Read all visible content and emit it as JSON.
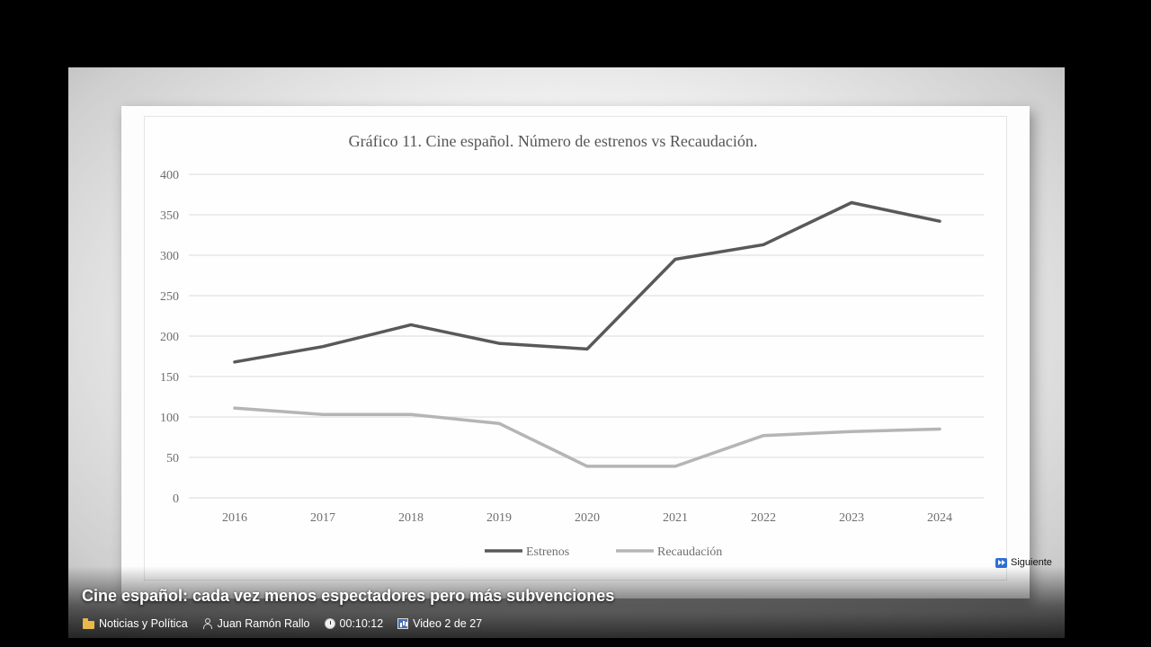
{
  "video": {
    "title": "Cine español: cada vez menos espectadores pero más subvenciones",
    "category": "Noticias y Política",
    "author": "Juan Ramón Rallo",
    "elapsed": "00:10:12",
    "position": "Video 2 de 27",
    "next_label": "Siguiente"
  },
  "chart_data": {
    "type": "line",
    "title": "Gráfico 11. Cine español. Número de estrenos vs Recaudación.",
    "x": [
      "2016",
      "2017",
      "2018",
      "2019",
      "2020",
      "2021",
      "2022",
      "2023",
      "2024"
    ],
    "yticks": [
      "0",
      "50",
      "100",
      "150",
      "200",
      "250",
      "300",
      "350",
      "400"
    ],
    "ylim": [
      0,
      400
    ],
    "grid": true,
    "legend_position": "bottom",
    "series": [
      {
        "name": "Estrenos",
        "color": "#595959",
        "values": [
          168,
          187,
          214,
          191,
          184,
          295,
          313,
          365,
          342
        ]
      },
      {
        "name": "Recaudación",
        "color": "#b5b5b5",
        "values": [
          111,
          103,
          103,
          92,
          39,
          39,
          77,
          82,
          85
        ]
      }
    ]
  },
  "icons": {
    "category": "folder-icon",
    "author": "user-icon",
    "elapsed": "timer-icon",
    "position": "chart-icon",
    "next": "next-track-icon"
  }
}
